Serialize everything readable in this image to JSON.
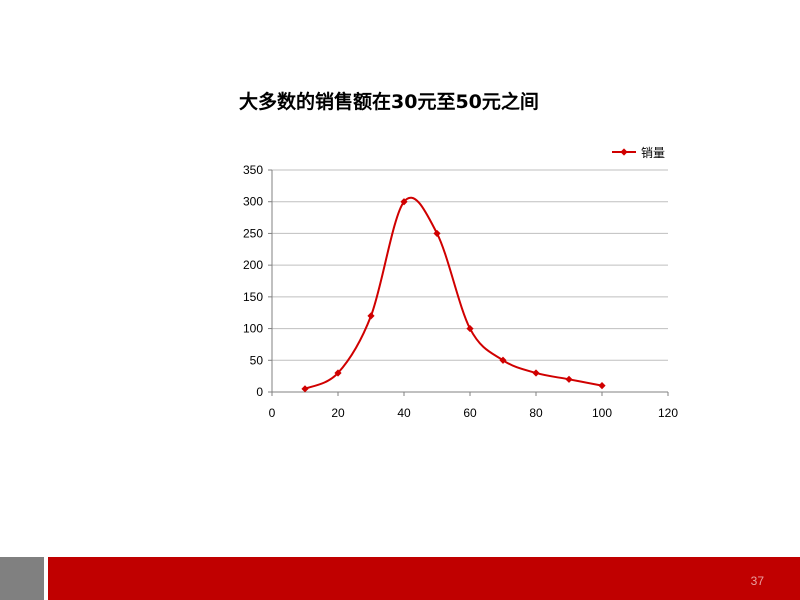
{
  "slide": {
    "title": "大多数的销售额在30元至50元之间",
    "page_number": "37"
  },
  "colors": {
    "series": "#d00000",
    "footer_red": "#c00000",
    "footer_gray": "#808080",
    "gridline": "#bfbfbf"
  },
  "chart_data": {
    "type": "scatter",
    "smooth": true,
    "title": "",
    "xlabel": "",
    "ylabel": "",
    "xlim": [
      0,
      120
    ],
    "ylim": [
      0,
      350
    ],
    "x_ticks": [
      0,
      20,
      40,
      60,
      80,
      100,
      120
    ],
    "y_ticks": [
      0,
      50,
      100,
      150,
      200,
      250,
      300,
      350
    ],
    "grid": "horizontal",
    "legend_position": "top-right",
    "series": [
      {
        "name": "销量",
        "marker": "diamond",
        "x": [
          10,
          20,
          30,
          40,
          50,
          60,
          70,
          80,
          90,
          100
        ],
        "y": [
          5,
          30,
          120,
          300,
          250,
          100,
          50,
          30,
          20,
          10
        ]
      }
    ]
  }
}
